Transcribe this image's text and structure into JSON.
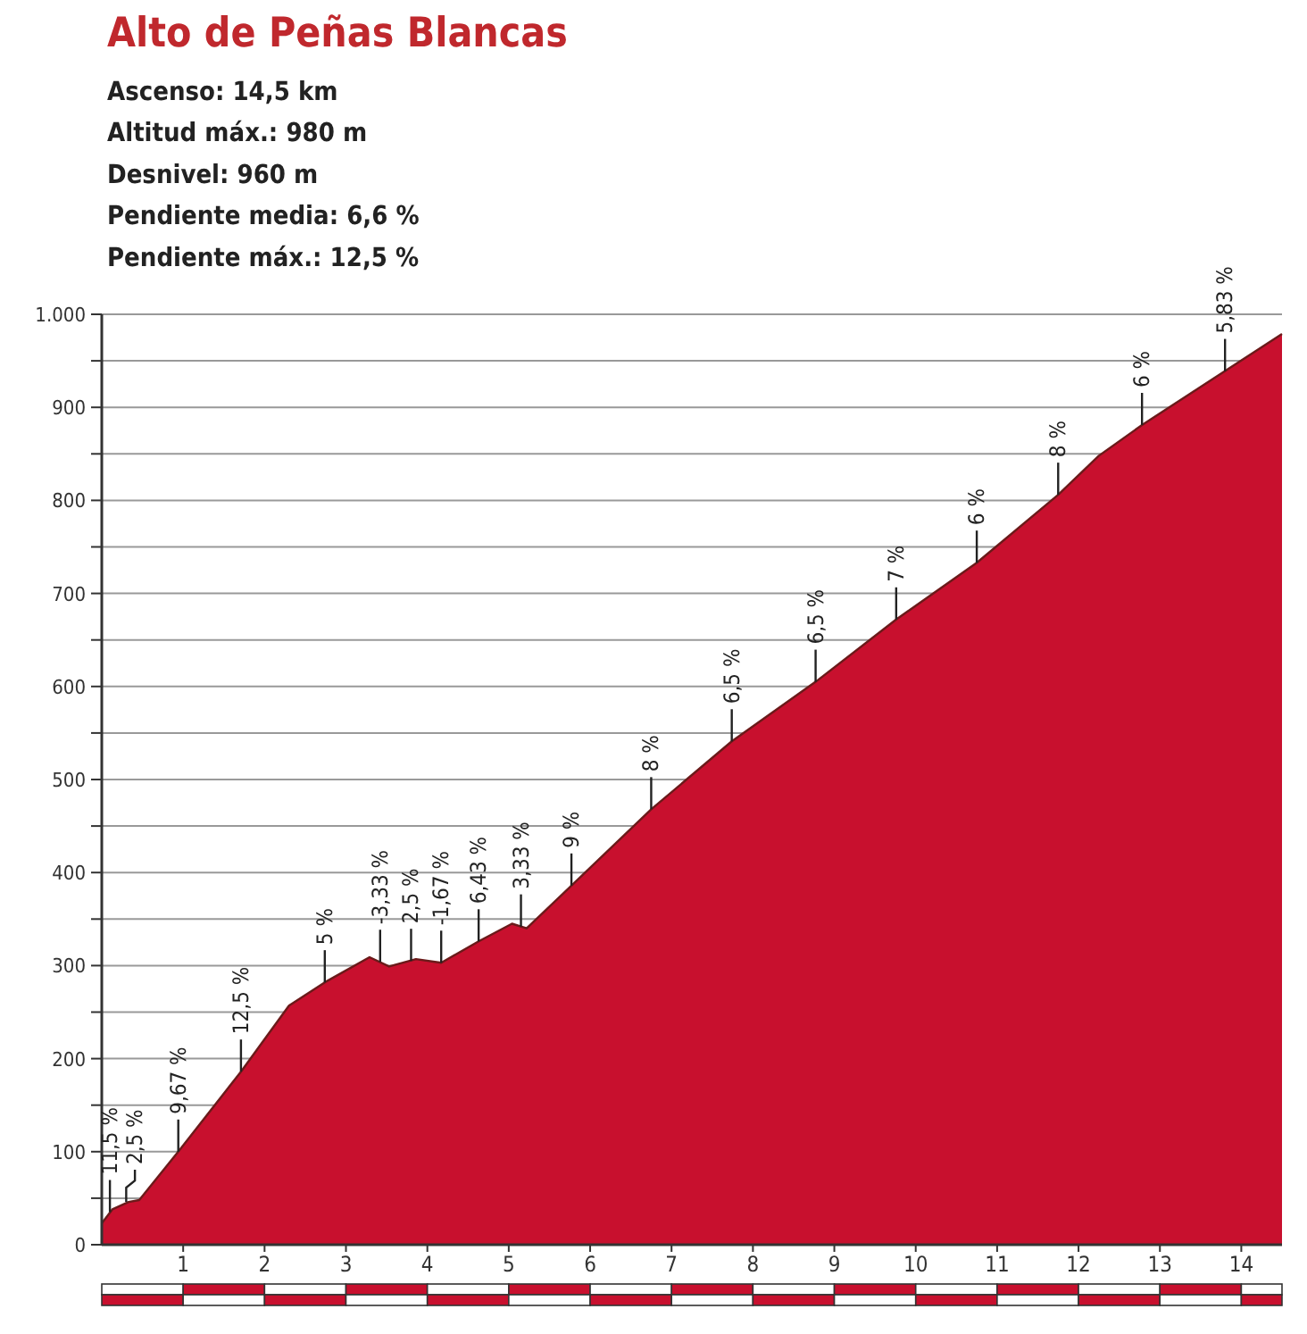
{
  "chart_data": {
    "type": "area",
    "title": "Alto de Peñas Blancas",
    "x": [
      0,
      0.13,
      0.33,
      0.46,
      0.94,
      1.71,
      2.3,
      2.74,
      3.29,
      3.53,
      3.86,
      4.17,
      4.63,
      5.04,
      5.22,
      5.77,
      6.75,
      7.74,
      8.77,
      9.76,
      10.75,
      11.75,
      12.25,
      12.78,
      13.8,
      14.5
    ],
    "series": [
      {
        "color": "#c8102e",
        "values": [
          23,
          38,
          46,
          48,
          100,
          186,
          257,
          282,
          309,
          299,
          307,
          303,
          326,
          345,
          340,
          386,
          468,
          541,
          605,
          672,
          733,
          806,
          848,
          881,
          939,
          979
        ]
      }
    ],
    "xlim": [
      0,
      14.5
    ],
    "xticks": [
      1,
      2,
      3,
      4,
      5,
      6,
      7,
      8,
      9,
      10,
      11,
      12,
      13,
      14
    ],
    "ylim": [
      0,
      1000
    ],
    "yticks": [
      0,
      {
        "value": 50,
        "label": null
      },
      100,
      {
        "value": 150,
        "label": null
      },
      200,
      {
        "value": 250,
        "label": null
      },
      300,
      {
        "value": 350,
        "label": null
      },
      400,
      {
        "value": 450,
        "label": null
      },
      500,
      {
        "value": 550,
        "label": null
      },
      600,
      {
        "value": 650,
        "label": null
      },
      700,
      {
        "value": 750,
        "label": null
      },
      800,
      {
        "value": 850,
        "label": null
      },
      900,
      {
        "value": 950,
        "label": null
      },
      {
        "value": 1000,
        "label": "1.000"
      }
    ],
    "grid": "y",
    "annotations": [
      "Ascenso: 14,5 km",
      "Altitud máx.: 980 m",
      "Desnivel: 960 m",
      "Pendiente media: 6,6 %",
      "Pendiente máx.: 12,5 %",
      {
        "text": "11,5 %",
        "x": 0.1,
        "y": 35
      },
      {
        "text": "2,5 %",
        "x": 0.3,
        "y": 46
      },
      {
        "text": "9,67 %",
        "x": 0.94,
        "y": 100
      },
      {
        "text": "12,5 %",
        "x": 1.71,
        "y": 186
      },
      {
        "text": "5 %",
        "x": 2.74,
        "y": 282
      },
      {
        "text": "-3,33 %",
        "x": 3.42,
        "y": 304
      },
      {
        "text": "2,5 %",
        "x": 3.8,
        "y": 305
      },
      {
        "text": "-1,67 %",
        "x": 4.17,
        "y": 303
      },
      {
        "text": "6,43 %",
        "x": 4.63,
        "y": 326
      },
      {
        "text": "3,33 %",
        "x": 5.15,
        "y": 342
      },
      {
        "text": "9 %",
        "x": 5.77,
        "y": 386
      },
      {
        "text": "8 %",
        "x": 6.75,
        "y": 468
      },
      {
        "text": "6,5 %",
        "x": 7.74,
        "y": 541
      },
      {
        "text": "6,5 %",
        "x": 8.77,
        "y": 605
      },
      {
        "text": "7 %",
        "x": 9.76,
        "y": 672
      },
      {
        "text": "6 %",
        "x": 10.75,
        "y": 733
      },
      {
        "text": "8 %",
        "x": 11.75,
        "y": 806
      },
      {
        "text": "6 %",
        "x": 12.78,
        "y": 881
      },
      {
        "text": "5,83 %",
        "x": 13.8,
        "y": 939
      }
    ]
  }
}
